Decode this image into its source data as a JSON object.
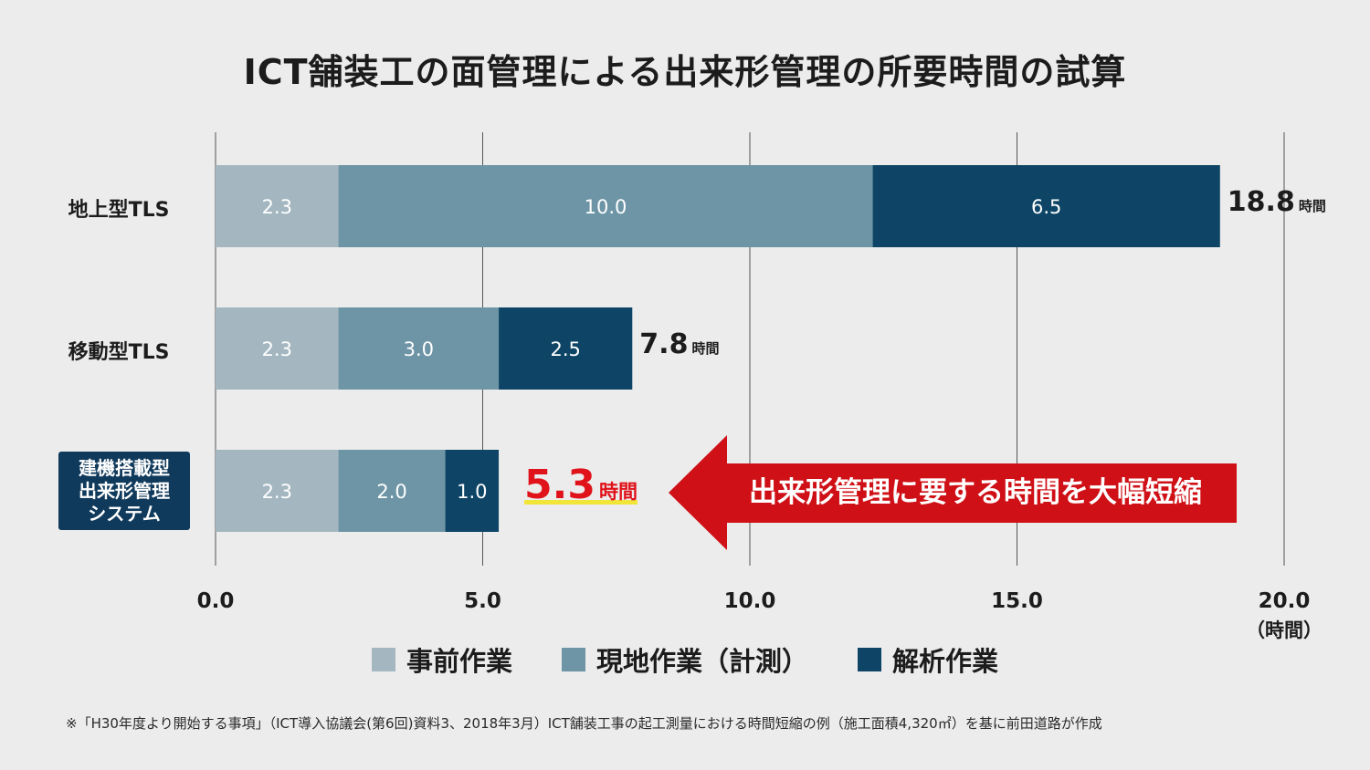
{
  "chart_data": {
    "type": "bar",
    "orientation": "horizontal",
    "stacked": true,
    "title": "ICT舗装工の面管理による出来形管理の所要時間の試算",
    "categories": [
      "地上型TLS",
      "移動型TLS",
      "建機搭載型\n出来形管理\nシステム"
    ],
    "series": [
      {
        "name": "事前作業",
        "values": [
          2.3,
          2.3,
          2.3
        ],
        "value_labels": [
          "2.3",
          "2.3",
          "2.3"
        ],
        "color": "#a4b7c1"
      },
      {
        "name": "現地作業（計測）",
        "values": [
          10.0,
          3.0,
          2.0
        ],
        "value_labels": [
          "10.0",
          "3.0",
          "2.0"
        ],
        "color": "#6e95a6"
      },
      {
        "name": "解析作業",
        "values": [
          6.5,
          2.5,
          1.0
        ],
        "value_labels": [
          "6.5",
          "2.5",
          "1.0"
        ],
        "color": "#0e4566"
      }
    ],
    "totals": [
      {
        "value": "18.8",
        "unit": "時間"
      },
      {
        "value": "7.8",
        "unit": "時間"
      },
      {
        "value": "5.3",
        "unit": "時間"
      }
    ],
    "x_ticks": [
      "0.0",
      "5.0",
      "10.0",
      "15.0",
      "20.0"
    ],
    "xlim": [
      0,
      20
    ],
    "x_unit_label": "（時間）",
    "grid": true,
    "legend_position": "bottom",
    "highlighted_category": "建機搭載型\n出来形管理\nシステム",
    "annotation": "出来形管理に要する時間を大幅短縮",
    "highlight_color": "#e0121a",
    "arrow_color": "#cf1016",
    "category_box_color": "#103a5c"
  },
  "footnote": "※「H30年度より開始する事項」（ICT導入協議会(第6回)資料3、2018年3月）ICT舗装工事の起工測量における時間短縮の例（施工面積4,320㎡）を基に前田道路が作成"
}
